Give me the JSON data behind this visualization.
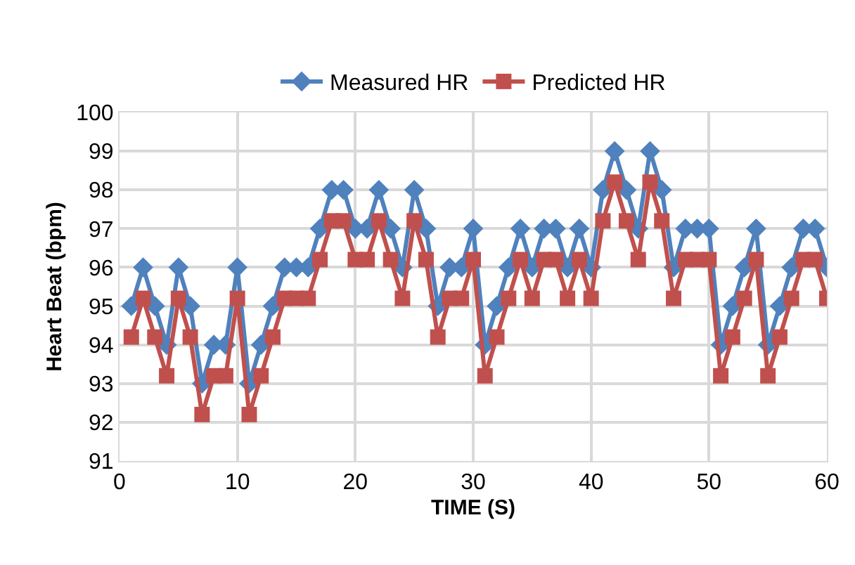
{
  "chart_data": {
    "type": "line",
    "xlabel": "TIME (S)",
    "ylabel": "Heart Beat (bpm)",
    "x": [
      1,
      2,
      3,
      4,
      5,
      6,
      7,
      8,
      9,
      10,
      11,
      12,
      13,
      14,
      15,
      16,
      17,
      18,
      19,
      20,
      21,
      22,
      23,
      24,
      25,
      26,
      27,
      28,
      29,
      30,
      31,
      32,
      33,
      34,
      35,
      36,
      37,
      38,
      39,
      40,
      41,
      42,
      43,
      44,
      45,
      46,
      47,
      48,
      49,
      50,
      51,
      52,
      53,
      54,
      55,
      56,
      57,
      58,
      59,
      60
    ],
    "series": [
      {
        "name": "Measured HR",
        "color": "#4f81bd",
        "marker": "diamond",
        "values": [
          95,
          96,
          95,
          94,
          96,
          95,
          93,
          94,
          94,
          96,
          93,
          94,
          95,
          96,
          96,
          96,
          97,
          98,
          98,
          97,
          97,
          98,
          97,
          96,
          98,
          97,
          95,
          96,
          96,
          97,
          94,
          95,
          96,
          97,
          96,
          97,
          97,
          96,
          97,
          96,
          98,
          99,
          98,
          97,
          99,
          98,
          96,
          97,
          97,
          97,
          94,
          95,
          96,
          97,
          94,
          95,
          96,
          97,
          97,
          96
        ]
      },
      {
        "name": "Predicted HR",
        "color": "#c0504d",
        "marker": "square",
        "values": [
          94.2,
          95.2,
          94.2,
          93.2,
          95.2,
          94.2,
          92.2,
          93.2,
          93.2,
          95.2,
          92.2,
          93.2,
          94.2,
          95.2,
          95.2,
          95.2,
          96.2,
          97.2,
          97.2,
          96.2,
          96.2,
          97.2,
          96.2,
          95.2,
          97.2,
          96.2,
          94.2,
          95.2,
          95.2,
          96.2,
          93.2,
          94.2,
          95.2,
          96.2,
          95.2,
          96.2,
          96.2,
          95.2,
          96.2,
          95.2,
          97.2,
          98.2,
          97.2,
          96.2,
          98.2,
          97.2,
          95.2,
          96.2,
          96.2,
          96.2,
          93.2,
          94.2,
          95.2,
          96.2,
          93.2,
          94.2,
          95.2,
          96.2,
          96.2,
          95.2
        ]
      }
    ],
    "xlim": [
      0,
      60
    ],
    "xticks": [
      0,
      10,
      20,
      30,
      40,
      50,
      60
    ],
    "ylim": [
      91,
      100
    ],
    "yticks": [
      91,
      92,
      93,
      94,
      95,
      96,
      97,
      98,
      99,
      100
    ],
    "grid": true,
    "legend": "top"
  }
}
